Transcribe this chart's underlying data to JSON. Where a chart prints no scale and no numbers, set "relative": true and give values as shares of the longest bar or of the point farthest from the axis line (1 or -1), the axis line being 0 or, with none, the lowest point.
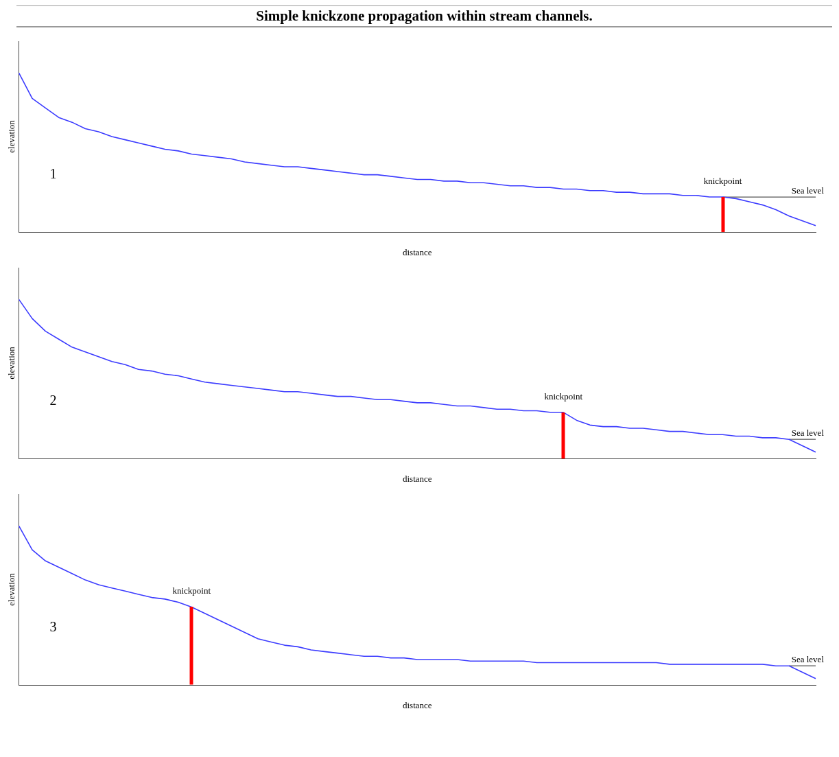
{
  "chart_data": [
    {
      "type": "line",
      "title": "Simple knickzone propagation within stream channels.",
      "xlabel": "distance",
      "ylabel": "elevation",
      "relative": true,
      "grid": false,
      "legend": false,
      "marker": "none",
      "annotations": [
        "1",
        {
          "text": "knickpoint",
          "y": 0.22
        }
      ],
      "categories": [
        null,
        null,
        null,
        null,
        null,
        null,
        null,
        null,
        null,
        null,
        null,
        null,
        null,
        null,
        null,
        null,
        null,
        null,
        null,
        null,
        null,
        null,
        null,
        null,
        null,
        null,
        null,
        null,
        null,
        null,
        null,
        null,
        null,
        null,
        null,
        null,
        null,
        null,
        null,
        null,
        null,
        null,
        null,
        null,
        null,
        null,
        null,
        null,
        null,
        null,
        null,
        null,
        null,
        null,
        null,
        null,
        null,
        null,
        null,
        null,
        null
      ],
      "series": [
        {
          "color": "#3c3cff",
          "values": [
            1.0,
            0.84,
            0.78,
            0.72,
            0.69,
            0.65,
            0.63,
            0.6,
            0.58,
            0.56,
            0.54,
            0.52,
            0.51,
            0.49,
            0.48,
            0.47,
            0.46,
            0.44,
            0.43,
            0.42,
            0.41,
            0.41,
            0.4,
            0.39,
            0.38,
            0.37,
            0.36,
            0.36,
            0.35,
            0.34,
            0.33,
            0.33,
            0.32,
            0.32,
            0.31,
            0.31,
            0.3,
            0.29,
            0.29,
            0.28,
            0.28,
            0.27,
            0.27,
            0.26,
            0.26,
            0.25,
            0.25,
            0.24,
            0.24,
            0.24,
            0.23,
            0.23,
            0.22,
            0.22,
            0.21,
            0.19,
            0.17,
            0.14,
            0.1,
            0.07,
            0.04
          ]
        },
        {
          "name": "Sea level",
          "color": "#555555",
          "values": [
            null,
            null,
            null,
            null,
            null,
            null,
            null,
            null,
            null,
            null,
            null,
            null,
            null,
            null,
            null,
            null,
            null,
            null,
            null,
            null,
            null,
            null,
            null,
            null,
            null,
            null,
            null,
            null,
            null,
            null,
            null,
            null,
            null,
            null,
            null,
            null,
            null,
            null,
            null,
            null,
            null,
            null,
            null,
            null,
            null,
            null,
            null,
            null,
            null,
            null,
            null,
            null,
            null,
            0.22,
            0.22,
            0.22,
            0.22,
            0.22,
            0.22,
            0.22,
            0.22
          ]
        }
      ]
    },
    {
      "type": "line",
      "xlabel": "distance",
      "ylabel": "elevation",
      "relative": true,
      "grid": false,
      "legend": false,
      "marker": "none",
      "annotations": [
        "2",
        {
          "text": "knickpoint",
          "y": 0.29
        }
      ],
      "categories": [
        null,
        null,
        null,
        null,
        null,
        null,
        null,
        null,
        null,
        null,
        null,
        null,
        null,
        null,
        null,
        null,
        null,
        null,
        null,
        null,
        null,
        null,
        null,
        null,
        null,
        null,
        null,
        null,
        null,
        null,
        null,
        null,
        null,
        null,
        null,
        null,
        null,
        null,
        null,
        null,
        null,
        null,
        null,
        null,
        null,
        null,
        null,
        null,
        null,
        null,
        null,
        null,
        null,
        null,
        null,
        null,
        null,
        null,
        null,
        null,
        null
      ],
      "series": [
        {
          "color": "#3c3cff",
          "values": [
            1.0,
            0.88,
            0.8,
            0.75,
            0.7,
            0.67,
            0.64,
            0.61,
            0.59,
            0.56,
            0.55,
            0.53,
            0.52,
            0.5,
            0.48,
            0.47,
            0.46,
            0.45,
            0.44,
            0.43,
            0.42,
            0.42,
            0.41,
            0.4,
            0.39,
            0.39,
            0.38,
            0.37,
            0.37,
            0.36,
            0.35,
            0.35,
            0.34,
            0.33,
            0.33,
            0.32,
            0.31,
            0.31,
            0.3,
            0.3,
            0.29,
            0.29,
            0.24,
            0.21,
            0.2,
            0.2,
            0.19,
            0.19,
            0.18,
            0.17,
            0.17,
            0.16,
            0.15,
            0.15,
            0.14,
            0.14,
            0.13,
            0.13,
            0.12,
            0.08,
            0.04
          ]
        },
        {
          "name": "Sea level",
          "color": "#555555",
          "values": [
            null,
            null,
            null,
            null,
            null,
            null,
            null,
            null,
            null,
            null,
            null,
            null,
            null,
            null,
            null,
            null,
            null,
            null,
            null,
            null,
            null,
            null,
            null,
            null,
            null,
            null,
            null,
            null,
            null,
            null,
            null,
            null,
            null,
            null,
            null,
            null,
            null,
            null,
            null,
            null,
            null,
            null,
            null,
            null,
            null,
            null,
            null,
            null,
            null,
            null,
            null,
            null,
            null,
            null,
            null,
            null,
            null,
            null,
            0.12,
            0.12,
            0.12
          ]
        }
      ]
    },
    {
      "type": "line",
      "xlabel": "distance",
      "ylabel": "elevation",
      "relative": true,
      "grid": false,
      "legend": false,
      "marker": "none",
      "annotations": [
        "3",
        {
          "text": "knickpoint",
          "y": 0.49
        }
      ],
      "categories": [
        null,
        null,
        null,
        null,
        null,
        null,
        null,
        null,
        null,
        null,
        null,
        null,
        null,
        null,
        null,
        null,
        null,
        null,
        null,
        null,
        null,
        null,
        null,
        null,
        null,
        null,
        null,
        null,
        null,
        null,
        null,
        null,
        null,
        null,
        null,
        null,
        null,
        null,
        null,
        null,
        null,
        null,
        null,
        null,
        null,
        null,
        null,
        null,
        null,
        null,
        null,
        null,
        null,
        null,
        null,
        null,
        null,
        null,
        null,
        null,
        null
      ],
      "series": [
        {
          "color": "#3c3cff",
          "values": [
            1.0,
            0.85,
            0.78,
            0.74,
            0.7,
            0.66,
            0.63,
            0.61,
            0.59,
            0.57,
            0.55,
            0.54,
            0.52,
            0.49,
            0.45,
            0.41,
            0.37,
            0.33,
            0.29,
            0.27,
            0.25,
            0.24,
            0.22,
            0.21,
            0.2,
            0.19,
            0.18,
            0.18,
            0.17,
            0.17,
            0.16,
            0.16,
            0.16,
            0.16,
            0.15,
            0.15,
            0.15,
            0.15,
            0.15,
            0.14,
            0.14,
            0.14,
            0.14,
            0.14,
            0.14,
            0.14,
            0.14,
            0.14,
            0.14,
            0.13,
            0.13,
            0.13,
            0.13,
            0.13,
            0.13,
            0.13,
            0.13,
            0.12,
            0.12,
            0.08,
            0.04
          ]
        },
        {
          "name": "Sea level",
          "color": "#555555",
          "values": [
            null,
            null,
            null,
            null,
            null,
            null,
            null,
            null,
            null,
            null,
            null,
            null,
            null,
            null,
            null,
            null,
            null,
            null,
            null,
            null,
            null,
            null,
            null,
            null,
            null,
            null,
            null,
            null,
            null,
            null,
            null,
            null,
            null,
            null,
            null,
            null,
            null,
            null,
            null,
            null,
            null,
            null,
            null,
            null,
            null,
            null,
            null,
            null,
            null,
            null,
            null,
            null,
            null,
            null,
            null,
            null,
            null,
            null,
            0.12,
            0.12,
            0.12
          ]
        }
      ]
    }
  ]
}
